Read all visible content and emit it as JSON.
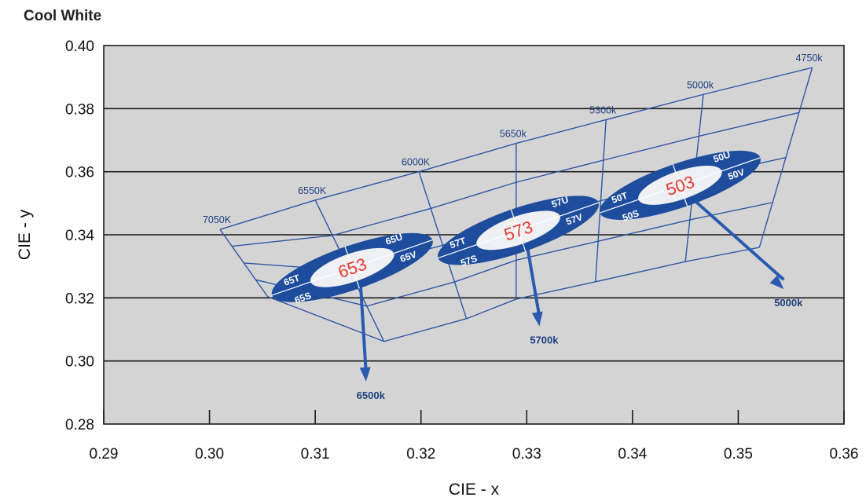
{
  "chart_data": {
    "type": "scatter",
    "title": "Cool White",
    "xlabel": "CIE - x",
    "ylabel": "CIE - y",
    "xlim": [
      0.29,
      0.36
    ],
    "ylim": [
      0.28,
      0.4
    ],
    "x_ticks": [
      "0.29",
      "0.30",
      "0.31",
      "0.32",
      "0.33",
      "0.34",
      "0.35",
      "0.36"
    ],
    "y_ticks": [
      "0.28",
      "0.30",
      "0.32",
      "0.34",
      "0.36",
      "0.38",
      "0.40"
    ],
    "grid": "horizontal",
    "cct_lines": [
      {
        "label": "7050K",
        "top": [
          0.301,
          0.3417
        ],
        "bottom": [
          0.3055,
          0.3204
        ]
      },
      {
        "label": "6550K",
        "top": [
          0.31,
          0.351
        ],
        "bottom": [
          0.3165,
          0.3062
        ]
      },
      {
        "label": "6000K",
        "top": [
          0.3198,
          0.36
        ],
        "bottom": [
          0.3243,
          0.3134
        ]
      },
      {
        "label": "5650k",
        "top": [
          0.329,
          0.369
        ],
        "bottom": [
          0.329,
          0.3196
        ]
      },
      {
        "label": "5300k",
        "top": [
          0.3375,
          0.3765
        ],
        "bottom": [
          0.3365,
          0.3251
        ]
      },
      {
        "label": "5000k",
        "top": [
          0.3467,
          0.3845
        ],
        "bottom": [
          0.345,
          0.3315
        ]
      },
      {
        "label": "4750k",
        "top": [
          0.357,
          0.393
        ],
        "bottom": [
          0.352,
          0.336
        ]
      }
    ],
    "bins": [
      {
        "center_label": "653",
        "center": [
          0.3135,
          0.3296
        ],
        "labels": [
          "65T",
          "65U",
          "65S",
          "65V"
        ],
        "color": "#1f4d9e",
        "arrow_label": "6500k",
        "arrow_end": [
          0.3148,
          0.2935
        ]
      },
      {
        "center_label": "573",
        "center": [
          0.3292,
          0.3414
        ],
        "labels": [
          "57T",
          "57U",
          "57S",
          "57V"
        ],
        "color": "#1f4d9e",
        "arrow_label": "5700k",
        "arrow_end": [
          0.3312,
          0.311
        ]
      },
      {
        "center_label": "503",
        "center": [
          0.3445,
          0.3557
        ],
        "labels": [
          "50T",
          "50U",
          "50S",
          "50V"
        ],
        "color": "#1f4d9e",
        "arrow_label": "5000k",
        "arrow_end": [
          0.3543,
          0.3228
        ]
      }
    ]
  }
}
